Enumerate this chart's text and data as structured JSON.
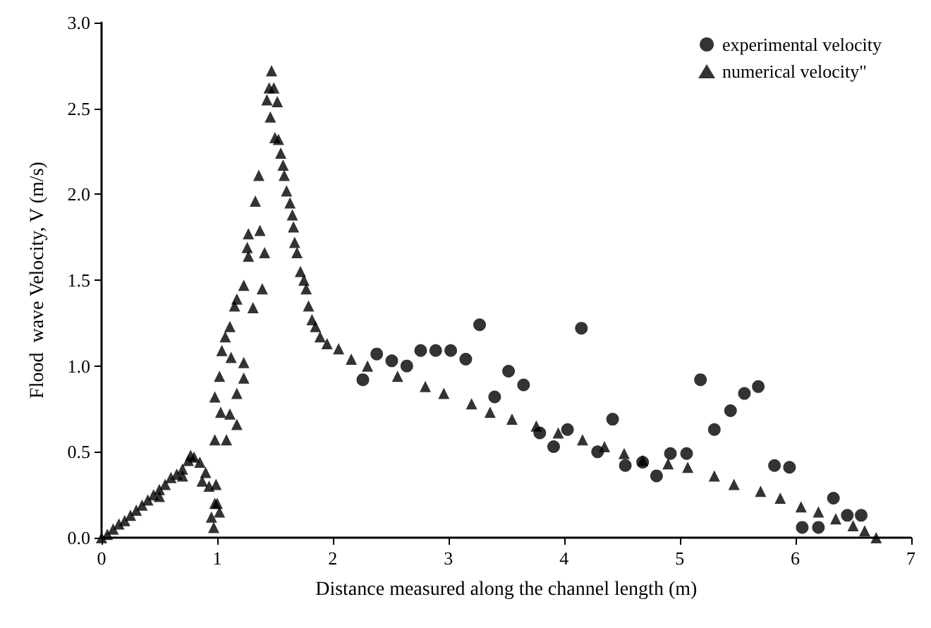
{
  "chart_data": {
    "type": "scatter",
    "xlabel": "Distance measured along the channel length (m)",
    "ylabel": "Flood  wave Velocity, V (m/s)",
    "xlim": [
      0,
      7
    ],
    "xticks": [
      0,
      1,
      2,
      3,
      4,
      5,
      6,
      7
    ],
    "ylim": [
      0,
      3
    ],
    "yticks": [
      {
        "value": 0,
        "label": "0.0"
      },
      {
        "value": 0.5,
        "label": "0.5"
      },
      {
        "value": 1,
        "label": "1.0"
      },
      {
        "value": 1.5,
        "label": "1.5"
      },
      {
        "value": 2,
        "label": "2.0"
      },
      {
        "value": 2.5,
        "label": "2.5"
      },
      {
        "value": 3,
        "label": "3.0"
      }
    ],
    "grid": false,
    "legend": "top right",
    "series": [
      {
        "name": "experimental velocity",
        "color": "#000000",
        "marker": "circle",
        "x": [
          2.26,
          2.38,
          2.51,
          2.64,
          2.76,
          2.89,
          3.02,
          3.15,
          3.27,
          3.4,
          3.52,
          3.65,
          3.79,
          3.91,
          4.03,
          4.15,
          4.29,
          4.42,
          4.53,
          4.68,
          4.8,
          4.92,
          5.06,
          5.18,
          5.3,
          5.44,
          5.56,
          5.68,
          5.82,
          5.95,
          6.06,
          6.2,
          6.33,
          6.45,
          6.57
        ],
        "values": [
          0.92,
          1.07,
          1.03,
          1,
          1.09,
          1.09,
          1.09,
          1.04,
          1.24,
          0.82,
          0.97,
          0.89,
          0.61,
          0.53,
          0.63,
          1.22,
          0.5,
          0.69,
          0.42,
          0.44,
          0.36,
          0.49,
          0.49,
          0.92,
          0.63,
          0.74,
          0.84,
          0.88,
          0.42,
          0.41,
          0.06,
          0.06,
          0.23,
          0.13,
          0.13
        ]
      },
      {
        "name": "numerical velocity\"",
        "color": "#000000",
        "marker": "triangle",
        "x": [
          0,
          0.05,
          0.1,
          0.15,
          0.2,
          0.25,
          0.3,
          0.35,
          0.4,
          0.45,
          0.5,
          0.5,
          0.55,
          0.6,
          0.65,
          0.7,
          0.7,
          0.75,
          0.77,
          0.8,
          0.85,
          0.87,
          0.9,
          0.93,
          0.95,
          0.97,
          0.98,
          0.99,
          1.0,
          1.02,
          0.98,
          0.98,
          1.02,
          1.03,
          1.04,
          1.07,
          1.08,
          1.11,
          1.11,
          1.12,
          1.15,
          1.17,
          1.17,
          1.17,
          1.23,
          1.23,
          1.23,
          1.26,
          1.27,
          1.27,
          1.31,
          1.33,
          1.36,
          1.37,
          1.39,
          1.41,
          1.43,
          1.45,
          1.46,
          1.47,
          1.49,
          1.5,
          1.52,
          1.53,
          1.55,
          1.57,
          1.58,
          1.6,
          1.63,
          1.65,
          1.66,
          1.67,
          1.69,
          1.72,
          1.75,
          1.77,
          1.79,
          1.82,
          1.85,
          1.89,
          1.95,
          2.05,
          2.16,
          2.3,
          2.56,
          2.8,
          2.96,
          3.2,
          3.36,
          3.55,
          3.76,
          3.95,
          4.16,
          4.35,
          4.52,
          4.68,
          4.9,
          5.07,
          5.3,
          5.47,
          5.7,
          5.87,
          6.05,
          6.2,
          6.35,
          6.5,
          6.6,
          6.7
        ],
        "values": [
          0,
          0.02,
          0.05,
          0.08,
          0.1,
          0.13,
          0.16,
          0.19,
          0.22,
          0.25,
          0.28,
          0.24,
          0.31,
          0.35,
          0.37,
          0.4,
          0.36,
          0.45,
          0.48,
          0.47,
          0.44,
          0.33,
          0.38,
          0.3,
          0.12,
          0.06,
          0.2,
          0.31,
          0.2,
          0.15,
          0.57,
          0.82,
          0.94,
          0.73,
          1.09,
          1.17,
          0.57,
          0.72,
          1.23,
          1.05,
          1.35,
          0.66,
          0.84,
          1.39,
          0.93,
          1.02,
          1.47,
          1.69,
          1.64,
          1.77,
          1.34,
          1.96,
          2.11,
          1.79,
          1.45,
          1.66,
          2.55,
          2.62,
          2.45,
          2.72,
          2.62,
          2.33,
          2.54,
          2.32,
          2.24,
          2.17,
          2.11,
          2.02,
          1.95,
          1.88,
          1.81,
          1.72,
          1.66,
          1.55,
          1.5,
          1.45,
          1.35,
          1.27,
          1.23,
          1.17,
          1.13,
          1.1,
          1.04,
          1.0,
          0.94,
          0.88,
          0.84,
          0.78,
          0.73,
          0.69,
          0.65,
          0.61,
          0.57,
          0.53,
          0.49,
          0.45,
          0.43,
          0.41,
          0.36,
          0.31,
          0.27,
          0.23,
          0.18,
          0.15,
          0.11,
          0.07,
          0.04,
          0
        ]
      }
    ]
  }
}
